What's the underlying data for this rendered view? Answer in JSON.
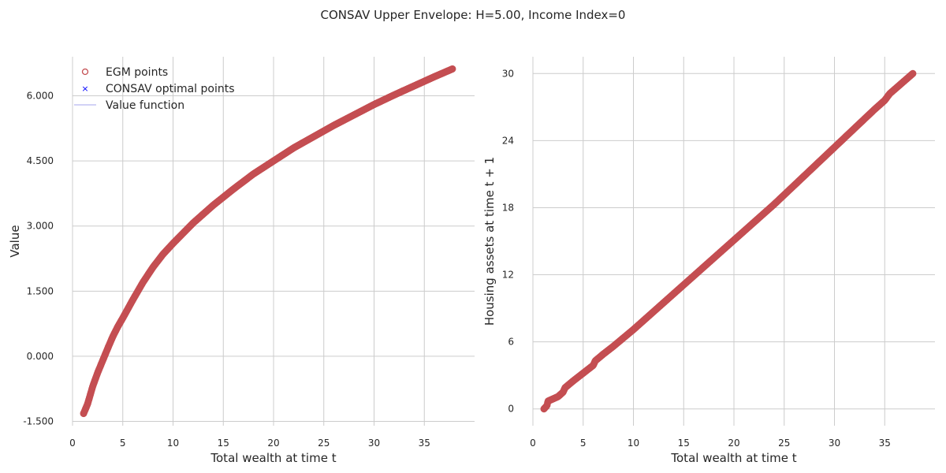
{
  "figure": {
    "title": "CONSAV Upper Envelope: H=5.00, Income Index=0"
  },
  "colors": {
    "egm": "#c44e52",
    "optimal": "#0000ff",
    "value_line": "#b8b8f0",
    "grid": "#cccccc",
    "text": "#262626"
  },
  "chart_data": [
    {
      "type": "scatter",
      "xlabel": "Total wealth at time t",
      "ylabel": "Value",
      "xlim": [
        0,
        40
      ],
      "ylim": [
        -1.6,
        6.9
      ],
      "x_ticks": [
        0,
        5,
        10,
        15,
        20,
        25,
        30,
        35
      ],
      "x_tick_labels": [
        "0",
        "5",
        "10",
        "15",
        "20",
        "25",
        "30",
        "35"
      ],
      "y_ticks": [
        -1.5,
        0,
        1.5,
        3,
        4.5,
        6
      ],
      "y_tick_labels": [
        "-1.500",
        "0.000",
        "1.500",
        "3.000",
        "4.500",
        "6.000"
      ],
      "grid": true,
      "legend": {
        "placement": "top-left",
        "entries": [
          {
            "label": "EGM points",
            "marker": "open-circle",
            "color": "#c44e52"
          },
          {
            "label": "CONSAV optimal points",
            "marker": "x",
            "color": "#0000ff"
          },
          {
            "label": "Value function",
            "marker": "line",
            "color": "#b8b8f0"
          }
        ]
      },
      "series": [
        {
          "name": "EGM points",
          "x": [
            1.1,
            1.5,
            2.0,
            2.5,
            3.0,
            3.5,
            4.0,
            4.5,
            5.0,
            6.0,
            7.0,
            8.0,
            9.0,
            10.0,
            12.0,
            14.0,
            16.0,
            18.0,
            20.0,
            22.0,
            24.0,
            26.0,
            28.0,
            30.0,
            32.0,
            34.0,
            36.0,
            37.8
          ],
          "y": [
            -1.32,
            -1.1,
            -0.7,
            -0.38,
            -0.1,
            0.18,
            0.45,
            0.68,
            0.88,
            1.3,
            1.7,
            2.05,
            2.35,
            2.6,
            3.07,
            3.48,
            3.85,
            4.2,
            4.5,
            4.8,
            5.06,
            5.32,
            5.56,
            5.8,
            6.02,
            6.23,
            6.44,
            6.62
          ]
        }
      ]
    },
    {
      "type": "scatter",
      "xlabel": "Total wealth at time t",
      "ylabel": "Housing assets at time t + 1",
      "xlim": [
        0,
        40
      ],
      "ylim": [
        -1.5,
        31.5
      ],
      "x_ticks": [
        0,
        5,
        10,
        15,
        20,
        25,
        30,
        35
      ],
      "x_tick_labels": [
        "0",
        "5",
        "10",
        "15",
        "20",
        "25",
        "30",
        "35"
      ],
      "y_ticks": [
        0,
        6,
        12,
        18,
        24,
        30
      ],
      "y_tick_labels": [
        "0",
        "6",
        "12",
        "18",
        "24",
        "30"
      ],
      "grid": true,
      "series": [
        {
          "name": "EGM points",
          "x": [
            1.1,
            1.4,
            1.5,
            2.0,
            2.5,
            3.0,
            3.2,
            4.0,
            5.0,
            6.0,
            6.2,
            7.0,
            8.0,
            10.0,
            12.0,
            14.0,
            16.0,
            18.0,
            20.0,
            22.0,
            24.0,
            26.0,
            28.0,
            30.0,
            32.0,
            34.0,
            35.0,
            35.5,
            37.8
          ],
          "y": [
            0.0,
            0.3,
            0.7,
            0.9,
            1.1,
            1.5,
            1.9,
            2.5,
            3.2,
            3.9,
            4.3,
            4.9,
            5.6,
            7.1,
            8.7,
            10.3,
            11.9,
            13.5,
            15.1,
            16.7,
            18.3,
            20.0,
            21.7,
            23.4,
            25.1,
            26.8,
            27.6,
            28.2,
            30.0
          ]
        }
      ]
    }
  ]
}
